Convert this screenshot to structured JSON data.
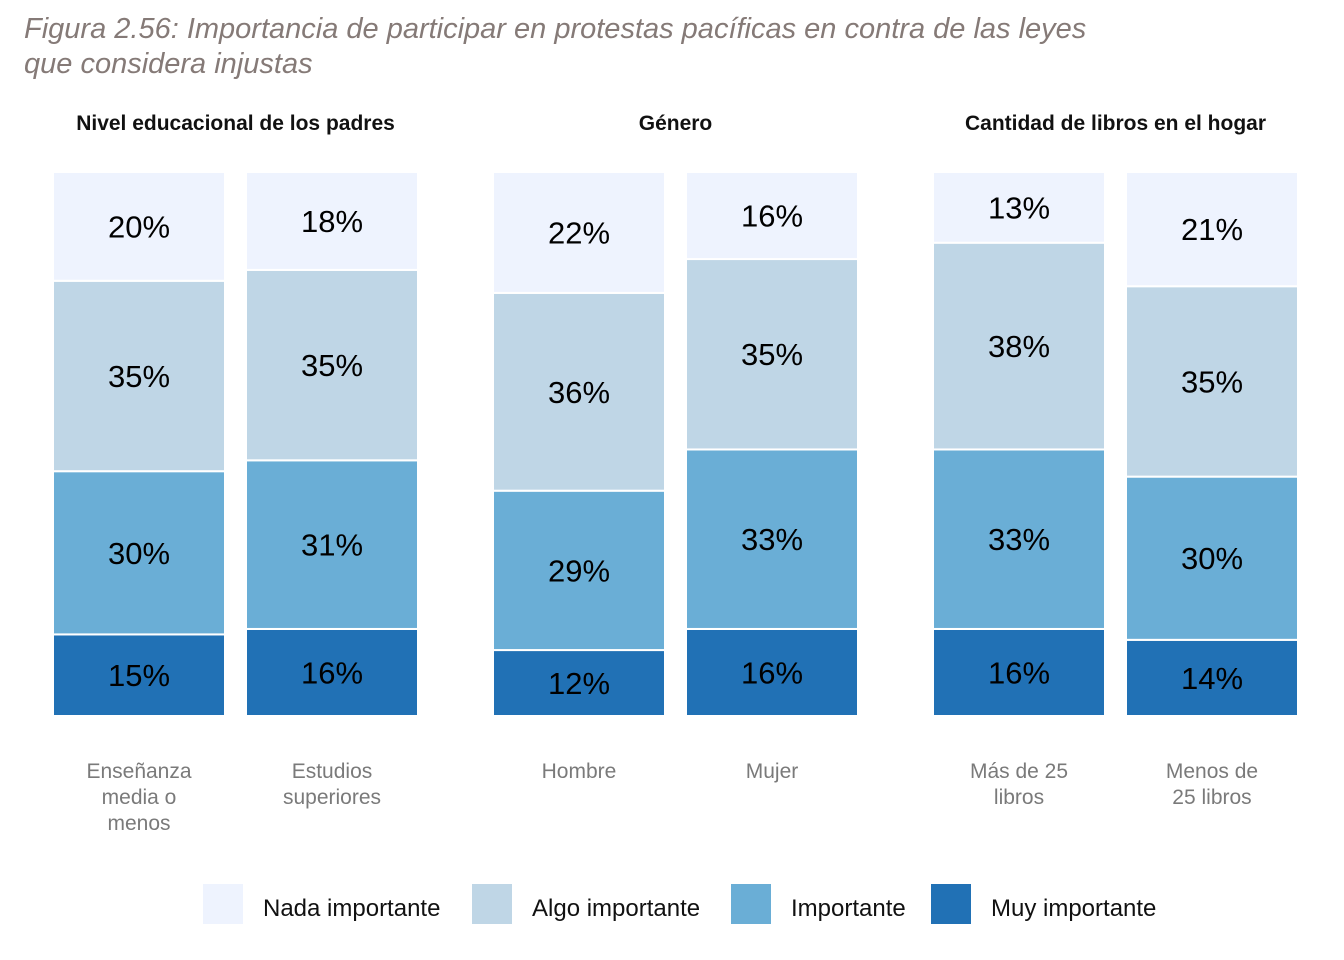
{
  "title": "Figura 2.56: Importancia de participar en protestas pacíficas en contra de las leyes que considera injustas",
  "colors": {
    "Nada importante": "#eef3fe",
    "Algo importante": "#bfd6e6",
    "Importante": "#6aaed6",
    "Muy importante": "#2171b5"
  },
  "chart_data": {
    "type": "bar",
    "stacked": true,
    "legend_placement": "bottom",
    "grid": false,
    "legend": [
      "Nada importante",
      "Algo importante",
      "Importante",
      "Muy importante"
    ],
    "panels": [
      {
        "title": "Nivel educacional de los padres",
        "bars": [
          {
            "category": [
              "Enseñanza",
              "media o",
              "menos"
            ],
            "values": {
              "Nada importante": 20,
              "Algo importante": 35,
              "Importante": 30,
              "Muy importante": 15
            },
            "labels": {
              "Nada importante": "20%",
              "Algo importante": "35%",
              "Importante": "30%",
              "Muy importante": "15%"
            }
          },
          {
            "category": [
              "Estudios",
              "superiores"
            ],
            "values": {
              "Nada importante": 18,
              "Algo importante": 35,
              "Importante": 31,
              "Muy importante": 16
            },
            "labels": {
              "Nada importante": "18%",
              "Algo importante": "35%",
              "Importante": "31%",
              "Muy importante": "16%"
            }
          }
        ]
      },
      {
        "title": "Género",
        "bars": [
          {
            "category": [
              "Hombre"
            ],
            "values": {
              "Nada importante": 22,
              "Algo importante": 36,
              "Importante": 29,
              "Muy importante": 12
            },
            "labels": {
              "Nada importante": "22%",
              "Algo importante": "36%",
              "Importante": "29%",
              "Muy importante": "12%"
            }
          },
          {
            "category": [
              "Mujer"
            ],
            "values": {
              "Nada importante": 16,
              "Algo importante": 35,
              "Importante": 33,
              "Muy importante": 16
            },
            "labels": {
              "Nada importante": "16%",
              "Algo importante": "35%",
              "Importante": "33%",
              "Muy importante": "16%"
            }
          }
        ]
      },
      {
        "title": "Cantidad de libros en el hogar",
        "bars": [
          {
            "category": [
              "Más de 25",
              "libros"
            ],
            "values": {
              "Nada importante": 13,
              "Algo importante": 38,
              "Importante": 33,
              "Muy importante": 16
            },
            "labels": {
              "Nada importante": "13%",
              "Algo importante": "38%",
              "Importante": "33%",
              "Muy importante": "16%"
            }
          },
          {
            "category": [
              "Menos de",
              "25 libros"
            ],
            "values": {
              "Nada importante": 21,
              "Algo importante": 35,
              "Importante": 30,
              "Muy importante": 14
            },
            "labels": {
              "Nada importante": "21%",
              "Algo importante": "35%",
              "Importante": "30%",
              "Muy importante": "14%"
            }
          }
        ]
      }
    ]
  }
}
